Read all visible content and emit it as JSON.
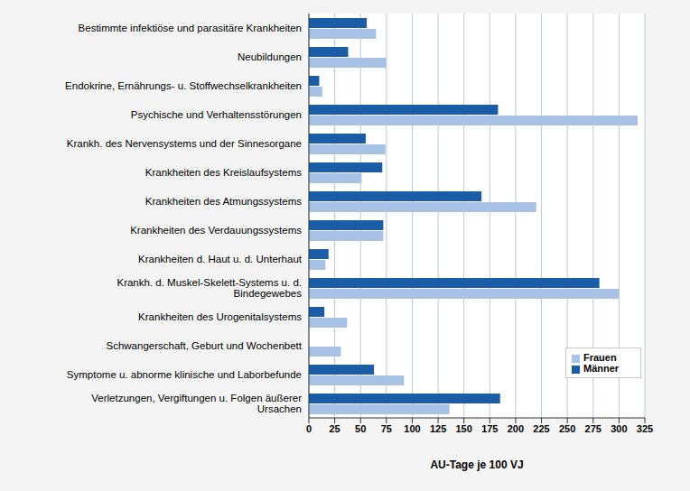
{
  "chart_data": {
    "type": "bar",
    "orientation": "horizontal",
    "x_label": "AU-Tage je 100 VJ",
    "categories": [
      "Bestimmte infektiöse und parasitäre Krankheiten",
      "Neubildungen",
      "Endokrine, Ernährungs- u. Stoffwechselkrankheiten",
      "Psychische und Verhaltensstörungen",
      "Krankh. des Nervensystems und der Sinnesorgane",
      "Krankheiten des Kreislaufsystems",
      "Krankheiten des Atmungssystems",
      "Krankheiten des Verdauungssystems",
      "Krankheiten d. Haut u. d. Unterhaut",
      "Krankh. d. Muskel-Skelett-Systems u. d. Bindegewebes",
      "Krankheiten des Urogenitalsystems",
      "Schwangerschaft, Geburt und Wochenbett",
      "Symptome u. abnorme klinische und Laborbefunde",
      "Verletzungen, Vergiftungen u. Folgen äußerer Ursachen"
    ],
    "series": [
      {
        "name": "Männer",
        "color": "#1a5da6",
        "values": [
          56,
          38,
          10,
          183,
          55,
          71,
          167,
          72,
          19,
          281,
          15,
          null,
          63,
          185
        ]
      },
      {
        "name": "Frauen",
        "color": "#a8c2e6",
        "values": [
          65,
          75,
          13,
          318,
          74,
          51,
          220,
          72,
          16,
          300,
          37,
          31,
          92,
          136
        ]
      }
    ],
    "xlim": [
      0,
      325
    ],
    "xticks": [
      0,
      25,
      50,
      75,
      100,
      125,
      150,
      175,
      200,
      225,
      250,
      275,
      300,
      325
    ],
    "grid": true,
    "legend": "lower right"
  }
}
